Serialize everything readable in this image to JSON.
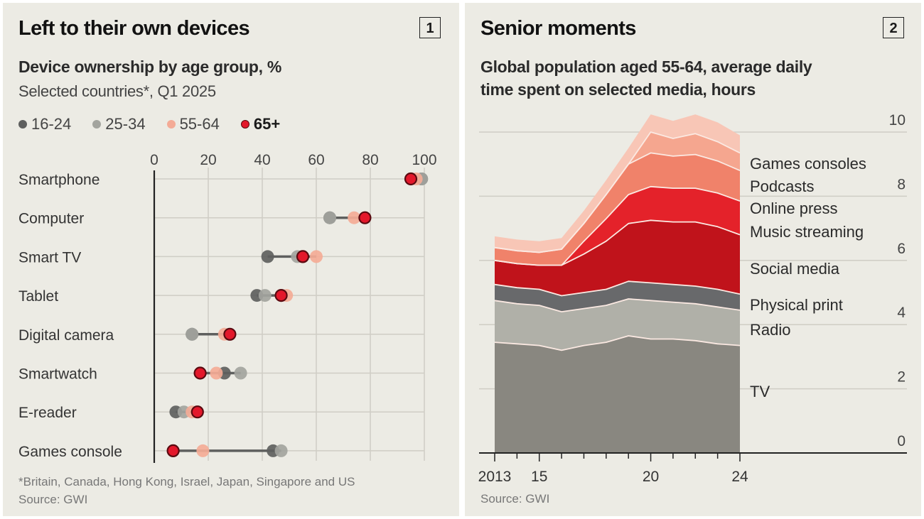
{
  "panel1": {
    "title": "Left to their own devices",
    "badge": "1",
    "subtitle": "Device ownership by age group, %",
    "subtitle2": "Selected countries*, Q1 2025",
    "footnote": "*Britain, Canada, Hong Kong, Israel, Japan, Singapore and US",
    "source": "Source: GWI"
  },
  "panel2": {
    "title": "Senior moments",
    "badge": "2",
    "subtitle_line1": "Global population aged 55-64, average daily",
    "subtitle_line2": "time spent on selected media, hours",
    "source": "Source: GWI"
  },
  "chart_data": [
    {
      "type": "scatter",
      "subtype": "dot-plot",
      "title": "Left to their own devices",
      "subtitle": "Device ownership by age group, %",
      "xlabel": "",
      "ylabel": "",
      "xlim": [
        0,
        100
      ],
      "x_ticks": [
        "0",
        "20",
        "40",
        "60",
        "80",
        "100"
      ],
      "grid": true,
      "legend_position": "top-left",
      "categories": [
        "Smartphone",
        "Computer",
        "Smart TV",
        "Tablet",
        "Digital camera",
        "Smartwatch",
        "E-reader",
        "Games console"
      ],
      "series": [
        {
          "name": "16-24",
          "color": "#5e5f5e",
          "values": [
            99,
            65,
            42,
            38,
            14,
            26,
            8,
            44
          ]
        },
        {
          "name": "25-34",
          "color": "#a3a49e",
          "values": [
            99,
            65,
            53,
            41,
            14,
            32,
            11,
            47
          ]
        },
        {
          "name": "55-64",
          "color": "#f4ab96",
          "values": [
            97,
            74,
            60,
            49,
            26,
            23,
            14,
            18
          ]
        },
        {
          "name": "65+",
          "color": "#e3182b",
          "values": [
            95,
            78,
            55,
            47,
            28,
            17,
            16,
            7
          ]
        }
      ]
    },
    {
      "type": "area",
      "stacked": true,
      "title": "Senior moments",
      "subtitle": "Global population aged 55-64, average daily time spent on selected media, hours",
      "xlabel": "",
      "ylabel": "",
      "x": [
        2013,
        2014,
        2015,
        2016,
        2017,
        2018,
        2019,
        2020,
        2021,
        2022,
        2023,
        2024
      ],
      "x_tick_labels": [
        "2013",
        "15",
        "20",
        "24"
      ],
      "x_tick_values": [
        2013,
        2015,
        2020,
        2024
      ],
      "ylim": [
        0,
        10
      ],
      "y_ticks": [
        "0",
        "2",
        "4",
        "6",
        "8",
        "10"
      ],
      "grid": true,
      "legend_position": "right (direct labels)",
      "series": [
        {
          "name": "TV",
          "color": "#898780",
          "values": [
            3.45,
            3.4,
            3.35,
            3.2,
            3.35,
            3.45,
            3.65,
            3.55,
            3.55,
            3.5,
            3.4,
            3.35
          ]
        },
        {
          "name": "Radio",
          "color": "#b0b0a8",
          "values": [
            1.3,
            1.25,
            1.25,
            1.2,
            1.15,
            1.15,
            1.15,
            1.2,
            1.15,
            1.15,
            1.15,
            1.1
          ]
        },
        {
          "name": "Physical print",
          "color": "#68696b",
          "values": [
            0.5,
            0.5,
            0.5,
            0.5,
            0.5,
            0.5,
            0.55,
            0.55,
            0.55,
            0.55,
            0.55,
            0.5
          ]
        },
        {
          "name": "Social media",
          "color": "#c0131b",
          "values": [
            0.75,
            0.75,
            0.75,
            0.95,
            1.2,
            1.5,
            1.8,
            1.95,
            1.95,
            2.0,
            1.95,
            1.85
          ]
        },
        {
          "name": "Music streaming",
          "color": "#e4222a",
          "values": [
            0.0,
            0.0,
            0.0,
            0.0,
            0.4,
            0.7,
            0.9,
            1.05,
            1.05,
            1.05,
            1.05,
            1.05
          ]
        },
        {
          "name": "Online press",
          "color": "#f0826a",
          "values": [
            0.4,
            0.4,
            0.4,
            0.5,
            0.55,
            0.75,
            0.95,
            1.05,
            1.0,
            1.05,
            1.0,
            0.95
          ]
        },
        {
          "name": "Podcasts",
          "color": "#f5a68f",
          "values": [
            0.0,
            0.0,
            0.0,
            0.0,
            0.0,
            0.0,
            0.0,
            0.65,
            0.55,
            0.65,
            0.6,
            0.55
          ]
        },
        {
          "name": "Games consoles",
          "color": "#f8c6b6",
          "values": [
            0.35,
            0.35,
            0.35,
            0.35,
            0.4,
            0.45,
            0.5,
            0.55,
            0.55,
            0.6,
            0.6,
            0.55
          ]
        }
      ]
    }
  ]
}
